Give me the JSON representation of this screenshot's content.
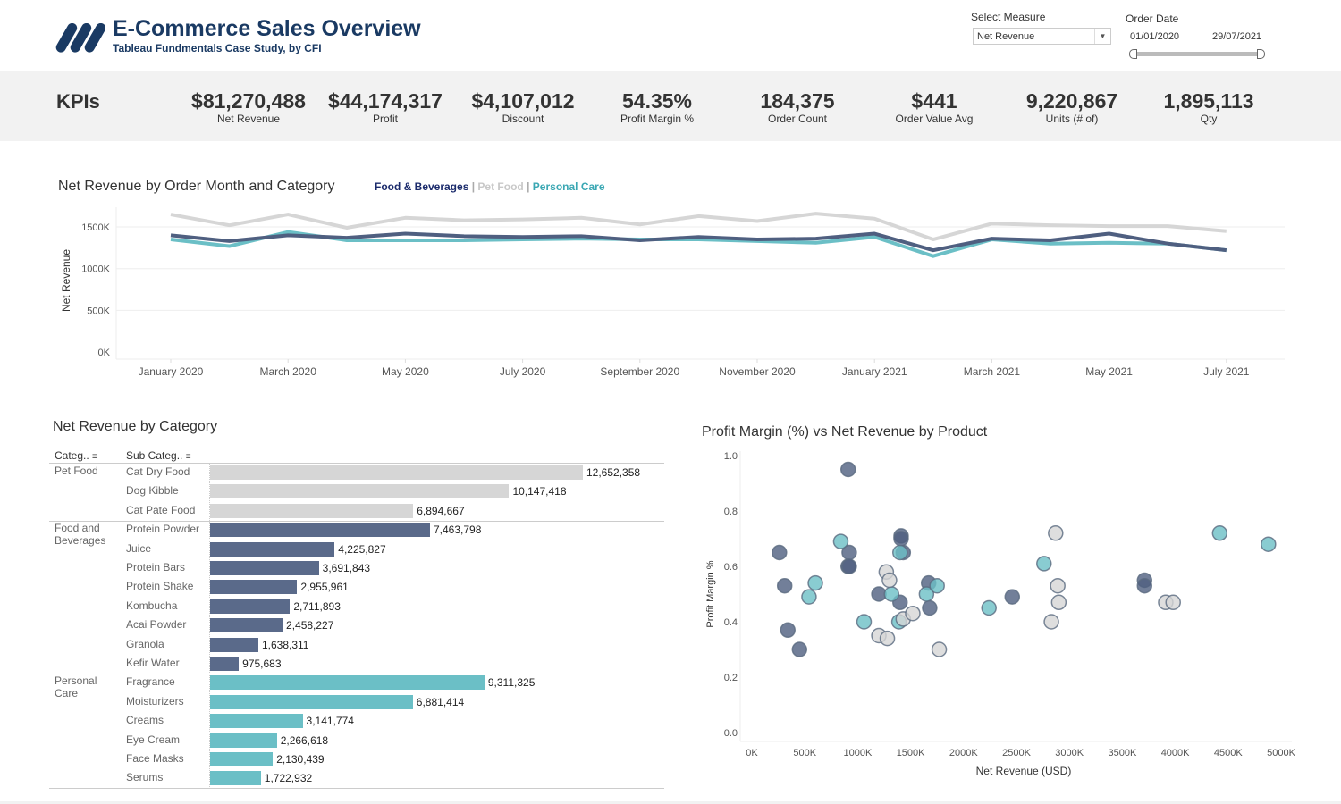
{
  "header": {
    "title": "E-Commerce Sales Overview",
    "subtitle": "Tableau Fundmentals Case Study, by CFI",
    "logo_icon": "cfi-slanted-bars-logo"
  },
  "filters": {
    "measure_label": "Select Measure",
    "measure_value": "Net Revenue",
    "date_label": "Order Date",
    "date_start": "01/01/2020",
    "date_end": "29/07/2021"
  },
  "kpis": {
    "title": "KPIs",
    "items": [
      {
        "value": "$81,270,488",
        "label": "Net Revenue"
      },
      {
        "value": "$44,174,317",
        "label": "Profit"
      },
      {
        "value": "$4,107,012",
        "label": "Discount"
      },
      {
        "value": "54.35%",
        "label": "Profit Margin %"
      },
      {
        "value": "184,375",
        "label": "Order Count"
      },
      {
        "value": "$441",
        "label": "Order Value Avg"
      },
      {
        "value": "9,220,867",
        "label": "Units (# of)"
      },
      {
        "value": "1,895,113",
        "label": "Qty"
      }
    ]
  },
  "colors": {
    "food_bev": "#5a6a8a",
    "pet_food": "#d6d6d6",
    "personal_care": "#6bbfc6",
    "brand": "#1a3a63"
  },
  "chart_data": [
    {
      "type": "line",
      "title": "Net Revenue by Order Month and Category",
      "ylabel": "Net Revenue",
      "xlabel": "",
      "ylim": [
        0,
        1750
      ],
      "yticks": [
        "0K",
        "500K",
        "1000K",
        "1500K"
      ],
      "xticks": [
        "January 2020",
        "March 2020",
        "May 2020",
        "July 2020",
        "September 2020",
        "November 2020",
        "January 2021",
        "March 2021",
        "May 2021",
        "July 2021"
      ],
      "x": [
        "2020-01",
        "2020-02",
        "2020-03",
        "2020-04",
        "2020-05",
        "2020-06",
        "2020-07",
        "2020-08",
        "2020-09",
        "2020-10",
        "2020-11",
        "2020-12",
        "2021-01",
        "2021-02",
        "2021-03",
        "2021-04",
        "2021-05",
        "2021-06",
        "2021-07"
      ],
      "grid": true,
      "legend_sep": "|",
      "series": [
        {
          "name": "Pet Food",
          "color": "#d6d6d6",
          "values": [
            1650,
            1520,
            1650,
            1490,
            1610,
            1580,
            1590,
            1610,
            1530,
            1630,
            1570,
            1660,
            1600,
            1350,
            1540,
            1520,
            1510,
            1510,
            1450
          ]
        },
        {
          "name": "Personal Care",
          "color": "#6bbfc6",
          "values": [
            1350,
            1270,
            1440,
            1340,
            1340,
            1340,
            1350,
            1360,
            1350,
            1350,
            1330,
            1310,
            1380,
            1150,
            1350,
            1300,
            1310,
            1300,
            1220
          ]
        },
        {
          "name": "Food & Beverages",
          "color": "#4f5f80",
          "values": [
            1400,
            1330,
            1400,
            1370,
            1420,
            1390,
            1380,
            1390,
            1340,
            1380,
            1350,
            1360,
            1420,
            1220,
            1360,
            1340,
            1420,
            1300,
            1220
          ]
        }
      ]
    },
    {
      "type": "bar",
      "title": "Net Revenue by Category",
      "col_headers": [
        "Categ..",
        "Sub Categ.."
      ],
      "groups": [
        {
          "category": "Pet Food",
          "color": "#d6d6d6",
          "items": [
            {
              "name": "Cat Dry Food",
              "value": 12652358,
              "label": "12,652,358"
            },
            {
              "name": "Dog Kibble",
              "value": 10147418,
              "label": "10,147,418"
            },
            {
              "name": "Cat Pate Food",
              "value": 6894667,
              "label": "6,894,667"
            }
          ]
        },
        {
          "category": "Food and Beverages",
          "color": "#5a6a8a",
          "items": [
            {
              "name": "Protein Powder",
              "value": 7463798,
              "label": "7,463,798"
            },
            {
              "name": "Juice",
              "value": 4225827,
              "label": "4,225,827"
            },
            {
              "name": "Protein Bars",
              "value": 3691843,
              "label": "3,691,843"
            },
            {
              "name": "Protein Shake",
              "value": 2955961,
              "label": "2,955,961"
            },
            {
              "name": "Kombucha",
              "value": 2711893,
              "label": "2,711,893"
            },
            {
              "name": "Acai Powder",
              "value": 2458227,
              "label": "2,458,227"
            },
            {
              "name": "Granola",
              "value": 1638311,
              "label": "1,638,311"
            },
            {
              "name": "Kefir Water",
              "value": 975683,
              "label": "975,683"
            }
          ]
        },
        {
          "category": "Personal Care",
          "color": "#6bbfc6",
          "items": [
            {
              "name": "Fragrance",
              "value": 9311325,
              "label": "9,311,325"
            },
            {
              "name": "Moisturizers",
              "value": 6881414,
              "label": "6,881,414"
            },
            {
              "name": "Creams",
              "value": 3141774,
              "label": "3,141,774"
            },
            {
              "name": "Eye Cream",
              "value": 2266618,
              "label": "2,266,618"
            },
            {
              "name": "Face Masks",
              "value": 2130439,
              "label": "2,130,439"
            },
            {
              "name": "Serums",
              "value": 1722932,
              "label": "1,722,932"
            }
          ]
        }
      ]
    },
    {
      "type": "scatter",
      "title": "Profit Margin (%) vs Net Revenue by Product",
      "xlabel": "Net Revenue (USD)",
      "ylabel": "Profit Margin %",
      "xlim": [
        0,
        5000
      ],
      "ylim": [
        0,
        1.0
      ],
      "xticks": [
        "0K",
        "500K",
        "1000K",
        "1500K",
        "2000K",
        "2500K",
        "3000K",
        "3500K",
        "4000K",
        "4500K",
        "5000K"
      ],
      "yticks": [
        "0.0",
        "0.2",
        "0.4",
        "0.6",
        "0.8",
        "1.0"
      ],
      "series": [
        {
          "name": "Food & Beverages",
          "color": "#4f5f80",
          "points": [
            [
              910,
              0.95
            ],
            [
              260,
              0.65
            ],
            [
              310,
              0.53
            ],
            [
              340,
              0.37
            ],
            [
              450,
              0.3
            ],
            [
              920,
              0.65
            ],
            [
              910,
              0.6
            ],
            [
              920,
              0.6
            ],
            [
              1410,
              0.71
            ],
            [
              1410,
              0.7
            ],
            [
              1430,
              0.65
            ],
            [
              1200,
              0.5
            ],
            [
              1400,
              0.47
            ],
            [
              1670,
              0.54
            ],
            [
              1680,
              0.45
            ],
            [
              2460,
              0.49
            ],
            [
              3710,
              0.55
            ],
            [
              3710,
              0.53
            ]
          ]
        },
        {
          "name": "Personal Care",
          "color": "#6bbfc6",
          "points": [
            [
              840,
              0.69
            ],
            [
              600,
              0.54
            ],
            [
              540,
              0.49
            ],
            [
              1060,
              0.4
            ],
            [
              1320,
              0.5
            ],
            [
              1390,
              0.4
            ],
            [
              1400,
              0.65
            ],
            [
              1650,
              0.5
            ],
            [
              1750,
              0.53
            ],
            [
              2240,
              0.45
            ],
            [
              2760,
              0.61
            ],
            [
              4420,
              0.72
            ],
            [
              4880,
              0.68
            ]
          ]
        },
        {
          "name": "Pet Food",
          "color": "#d6d6d6",
          "points": [
            [
              1270,
              0.58
            ],
            [
              1300,
              0.55
            ],
            [
              1200,
              0.35
            ],
            [
              1280,
              0.34
            ],
            [
              1430,
              0.41
            ],
            [
              1520,
              0.43
            ],
            [
              1770,
              0.3
            ],
            [
              2870,
              0.72
            ],
            [
              2890,
              0.53
            ],
            [
              2900,
              0.47
            ],
            [
              2830,
              0.4
            ],
            [
              3910,
              0.47
            ],
            [
              3980,
              0.47
            ]
          ]
        }
      ]
    }
  ]
}
